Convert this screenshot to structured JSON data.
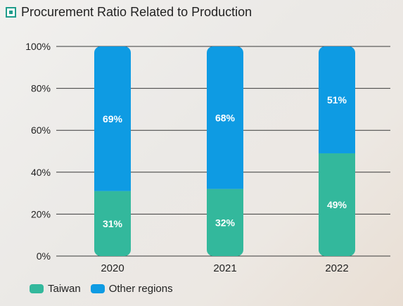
{
  "header": {
    "title": "Procurement Ratio Related to Production",
    "icon": "square-bullet-icon"
  },
  "chart_data": {
    "type": "bar",
    "stacked": true,
    "title": "Procurement Ratio Related to Production",
    "categories": [
      "2020",
      "2021",
      "2022"
    ],
    "series": [
      {
        "name": "Taiwan",
        "values": [
          31,
          32,
          49
        ],
        "labels": [
          "31%",
          "32%",
          "49%"
        ],
        "color": "#33b89c"
      },
      {
        "name": "Other regions",
        "values": [
          69,
          68,
          51
        ],
        "labels": [
          "69%",
          "68%",
          "51%"
        ],
        "color": "#0e9be3"
      }
    ],
    "y_ticks": [
      "0%",
      "20%",
      "40%",
      "60%",
      "80%",
      "100%"
    ],
    "ylim": [
      0,
      100
    ],
    "grid": true,
    "legend": "bottom-left"
  },
  "legend": [
    {
      "label": "Taiwan",
      "color": "#33b89c"
    },
    {
      "label": "Other regions",
      "color": "#0e9be3"
    }
  ]
}
